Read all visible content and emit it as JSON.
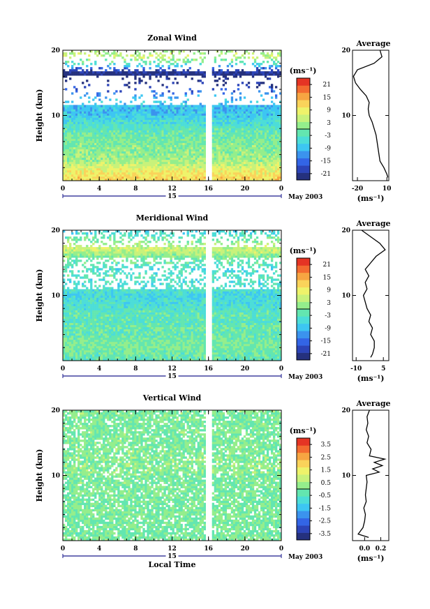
{
  "figure": {
    "x_axis_label": "Local Time",
    "day_label": "15",
    "month_label": "May 2003"
  },
  "chart_data": [
    {
      "type": "heatmap",
      "title": "Zonal Wind",
      "xlabel": "",
      "ylabel": "Height (km)",
      "xlim": [
        0,
        24
      ],
      "ylim": [
        0,
        20
      ],
      "x_ticks": [
        "0",
        "4",
        "8",
        "12",
        "16",
        "20",
        "0"
      ],
      "y_ticks": [
        "10",
        "20"
      ],
      "colorbar": {
        "unit": "(ms⁻¹)",
        "ticks": [
          "21",
          "15",
          "9",
          "3",
          "-3",
          "-9",
          "-15",
          "-21"
        ],
        "range": [
          -24,
          24
        ]
      },
      "field_description": "strong positive wind near surface (about 15 ms-1 below 3 km) decreasing to negative values (about -15 to -24 ms-1) between 10 and 12 km, no data gap 11-16 km, thin negative layer near 16.5 km, sparse data above 17 km, data gap at 16 LT",
      "average_profile": {
        "title": "Average",
        "xlabel": "(ms⁻¹)",
        "x_ticks": [
          "-20",
          "10"
        ],
        "y_ticks": [
          "10",
          "20"
        ],
        "xlim": [
          -25,
          12
        ],
        "height": [
          0.5,
          1,
          2,
          3,
          4,
          5,
          6,
          7,
          8,
          9,
          10,
          11,
          12,
          13,
          14,
          15,
          16,
          17,
          18,
          19,
          20
        ],
        "value": [
          11,
          10,
          7,
          3,
          2,
          1,
          0,
          -1,
          -3,
          -5,
          -8,
          -9,
          -8,
          -11,
          -17,
          -22,
          -24,
          -20,
          -3,
          5,
          3
        ]
      }
    },
    {
      "type": "heatmap",
      "title": "Meridional Wind",
      "xlabel": "",
      "ylabel": "Height (km)",
      "xlim": [
        0,
        24
      ],
      "ylim": [
        0,
        20
      ],
      "x_ticks": [
        "0",
        "4",
        "8",
        "12",
        "16",
        "20",
        "0"
      ],
      "y_ticks": [
        "10",
        "20"
      ],
      "colorbar": {
        "unit": "(ms⁻¹)",
        "ticks": [
          "21",
          "15",
          "9",
          "3",
          "-3",
          "-9",
          "-15",
          "-21"
        ],
        "range": [
          -24,
          24
        ]
      },
      "field_description": "weak wind (about -6 to 3 ms-1) throughout, with small positive layer near 16-17 km and sparse data above",
      "average_profile": {
        "title": "Average",
        "xlabel": "(ms⁻¹)",
        "x_ticks": [
          "-10",
          "5"
        ],
        "y_ticks": [
          "10",
          "20"
        ],
        "xlim": [
          -12,
          8
        ],
        "height": [
          0.5,
          1,
          2,
          3,
          4,
          5,
          6,
          7,
          8,
          9,
          10,
          11,
          12,
          13,
          14,
          15,
          16,
          17,
          18,
          19,
          20
        ],
        "value": [
          -2,
          -1,
          0,
          0,
          -2,
          -1,
          -3,
          -2,
          -4,
          -5,
          -6,
          -4,
          -5,
          -3,
          -5,
          -2,
          1,
          6,
          3,
          -2,
          -7
        ]
      }
    },
    {
      "type": "heatmap",
      "title": "Vertical Wind",
      "xlabel": "Local Time",
      "ylabel": "Height (km)",
      "xlim": [
        0,
        24
      ],
      "ylim": [
        0,
        20
      ],
      "x_ticks": [
        "0",
        "4",
        "8",
        "12",
        "16",
        "20",
        "0"
      ],
      "y_ticks": [
        "10",
        "20"
      ],
      "colorbar": {
        "unit": "(ms⁻¹)",
        "ticks": [
          "3.5",
          "2.5",
          "1.5",
          "0.5",
          "-0.5",
          "-1.5",
          "-2.5",
          "-3.5"
        ],
        "range": [
          -4,
          4
        ]
      },
      "field_description": "small vertical velocities (about -0.5 to 0.5 ms-1) everywhere, noisy, data gap at 16 LT",
      "average_profile": {
        "title": "Average",
        "xlabel": "(ms⁻¹)",
        "x_ticks": [
          "0.0",
          "0.2"
        ],
        "y_ticks": [
          "10",
          "20"
        ],
        "xlim": [
          -0.15,
          0.3
        ],
        "height": [
          0.5,
          1,
          2,
          3,
          4,
          5,
          6,
          7,
          8,
          9,
          10,
          10.5,
          11,
          11.5,
          12,
          12.5,
          13,
          14,
          15,
          16,
          17,
          18,
          19,
          20
        ],
        "value": [
          0.05,
          -0.08,
          -0.02,
          0.0,
          0.01,
          -0.01,
          0.02,
          0.01,
          0.02,
          0.03,
          0.02,
          0.18,
          0.1,
          0.22,
          0.12,
          0.25,
          0.06,
          0.08,
          0.03,
          0.05,
          0.02,
          0.04,
          0.03,
          0.06
        ]
      }
    }
  ]
}
